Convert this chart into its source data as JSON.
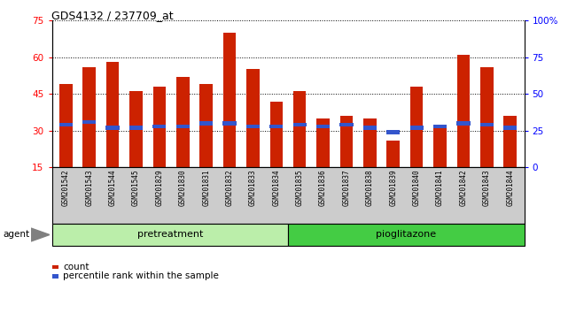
{
  "title": "GDS4132 / 237709_at",
  "samples": [
    "GSM201542",
    "GSM201543",
    "GSM201544",
    "GSM201545",
    "GSM201829",
    "GSM201830",
    "GSM201831",
    "GSM201832",
    "GSM201833",
    "GSM201834",
    "GSM201835",
    "GSM201836",
    "GSM201837",
    "GSM201838",
    "GSM201839",
    "GSM201840",
    "GSM201841",
    "GSM201842",
    "GSM201843",
    "GSM201844"
  ],
  "counts": [
    49,
    56,
    58,
    46,
    48,
    52,
    49,
    70,
    55,
    42,
    46,
    35,
    36,
    35,
    26,
    48,
    31,
    61,
    56,
    36
  ],
  "percentiles": [
    29,
    31,
    27,
    27,
    28,
    28,
    30,
    30,
    28,
    28,
    29,
    28,
    29,
    27,
    24,
    27,
    28,
    30,
    29,
    27
  ],
  "pretreat_count": 10,
  "piog_count": 10,
  "ylim_left": [
    15,
    75
  ],
  "ylim_right": [
    0,
    100
  ],
  "yticks_left": [
    15,
    30,
    45,
    60,
    75
  ],
  "yticks_right": [
    0,
    25,
    50,
    75,
    100
  ],
  "ytick_labels_right": [
    "0",
    "25",
    "50",
    "75",
    "100%"
  ],
  "bar_color": "#cc2200",
  "percentile_color": "#3355cc",
  "pretreatment_color": "#bbeeaa",
  "pioglitazone_color": "#44cc44",
  "bg_color": "#cccccc",
  "agent_label": "agent",
  "legend_count": "count",
  "legend_percentile": "percentile rank within the sample"
}
